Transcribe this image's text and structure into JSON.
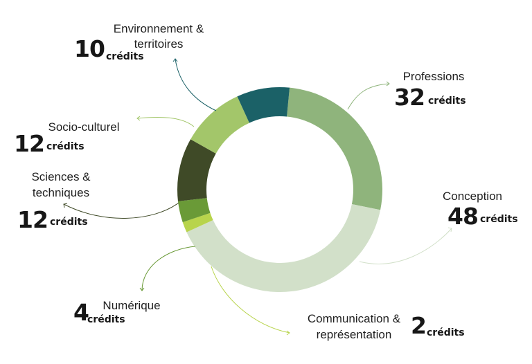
{
  "chart_data": {
    "type": "pie",
    "donut": true,
    "unit": "crédits",
    "slices": [
      {
        "key": "professions",
        "label_lines": [
          "Professions"
        ],
        "value": 32,
        "color": "#8fb47c"
      },
      {
        "key": "conception",
        "label_lines": [
          "Conception"
        ],
        "value": 48,
        "color": "#d2e0c9"
      },
      {
        "key": "communication",
        "label_lines": [
          "Communication &",
          "représentation"
        ],
        "value": 2,
        "color": "#b8d44c"
      },
      {
        "key": "numerique",
        "label_lines": [
          "Numérique"
        ],
        "value": 4,
        "color": "#6a9a37"
      },
      {
        "key": "sciences",
        "label_lines": [
          "Sciences &",
          "techniques"
        ],
        "value": 12,
        "color": "#3f4a27"
      },
      {
        "key": "socio",
        "label_lines": [
          "Socio-culturel"
        ],
        "value": 12,
        "color": "#a3c66a"
      },
      {
        "key": "environnement",
        "label_lines": [
          "Environnement &",
          "territoires"
        ],
        "value": 10,
        "color": "#1b6167"
      }
    ]
  }
}
